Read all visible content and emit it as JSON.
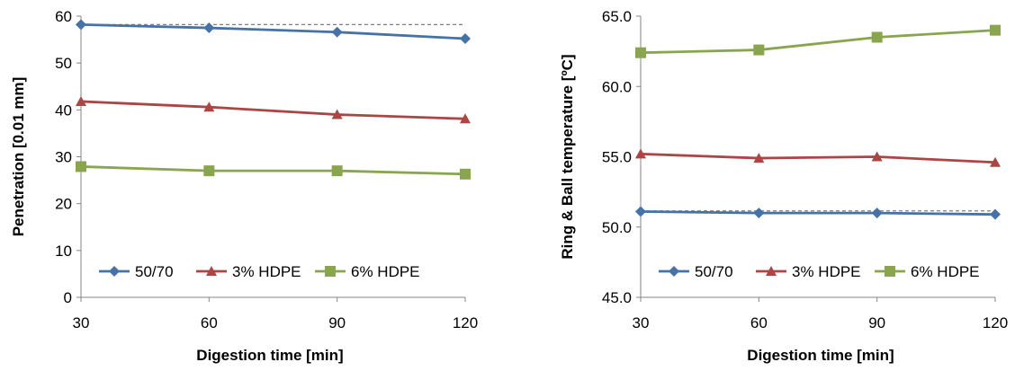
{
  "chart_data": [
    {
      "type": "line",
      "xlabel": "Digestion time [min]",
      "ylabel": "Penetration [0.01 mm]",
      "x": [
        30,
        60,
        90,
        120
      ],
      "xticks": [
        "30",
        "60",
        "90",
        "120"
      ],
      "yticks": [
        "0",
        "10",
        "20",
        "30",
        "40",
        "50",
        "60"
      ],
      "ylim": [
        0,
        60
      ],
      "reference_line": {
        "value": 58.2,
        "style": "dashed",
        "color": "#7f7f7f"
      },
      "series": [
        {
          "name": "50/70",
          "values": [
            58.2,
            57.5,
            56.6,
            55.2
          ],
          "color": "#4572A7",
          "marker": "diamond"
        },
        {
          "name": "3% HDPE",
          "values": [
            41.8,
            40.6,
            39.0,
            38.1
          ],
          "color": "#AA4643",
          "marker": "triangle"
        },
        {
          "name": "6% HDPE",
          "values": [
            27.9,
            27.0,
            27.0,
            26.3
          ],
          "color": "#89A54E",
          "marker": "square"
        }
      ],
      "legend": "bottom-inside",
      "grid": false
    },
    {
      "type": "line",
      "xlabel": "Digestion time [min]",
      "ylabel": "Ring & Ball temperature [ºC]",
      "x": [
        30,
        60,
        90,
        120
      ],
      "xticks": [
        "30",
        "60",
        "90",
        "120"
      ],
      "yticks": [
        "45.0",
        "50.0",
        "55.0",
        "60.0",
        "65.0"
      ],
      "ylim": [
        45,
        65
      ],
      "reference_line": {
        "value": 51.15,
        "style": "dashed",
        "color": "#7f7f7f"
      },
      "series": [
        {
          "name": "50/70",
          "values": [
            51.1,
            51.0,
            51.0,
            50.9
          ],
          "color": "#4572A7",
          "marker": "diamond"
        },
        {
          "name": "3% HDPE",
          "values": [
            55.2,
            54.9,
            55.0,
            54.6
          ],
          "color": "#AA4643",
          "marker": "triangle"
        },
        {
          "name": "6% HDPE",
          "values": [
            62.4,
            62.6,
            63.5,
            64.0
          ],
          "color": "#89A54E",
          "marker": "square"
        }
      ],
      "legend": "bottom-inside",
      "grid": false
    }
  ]
}
